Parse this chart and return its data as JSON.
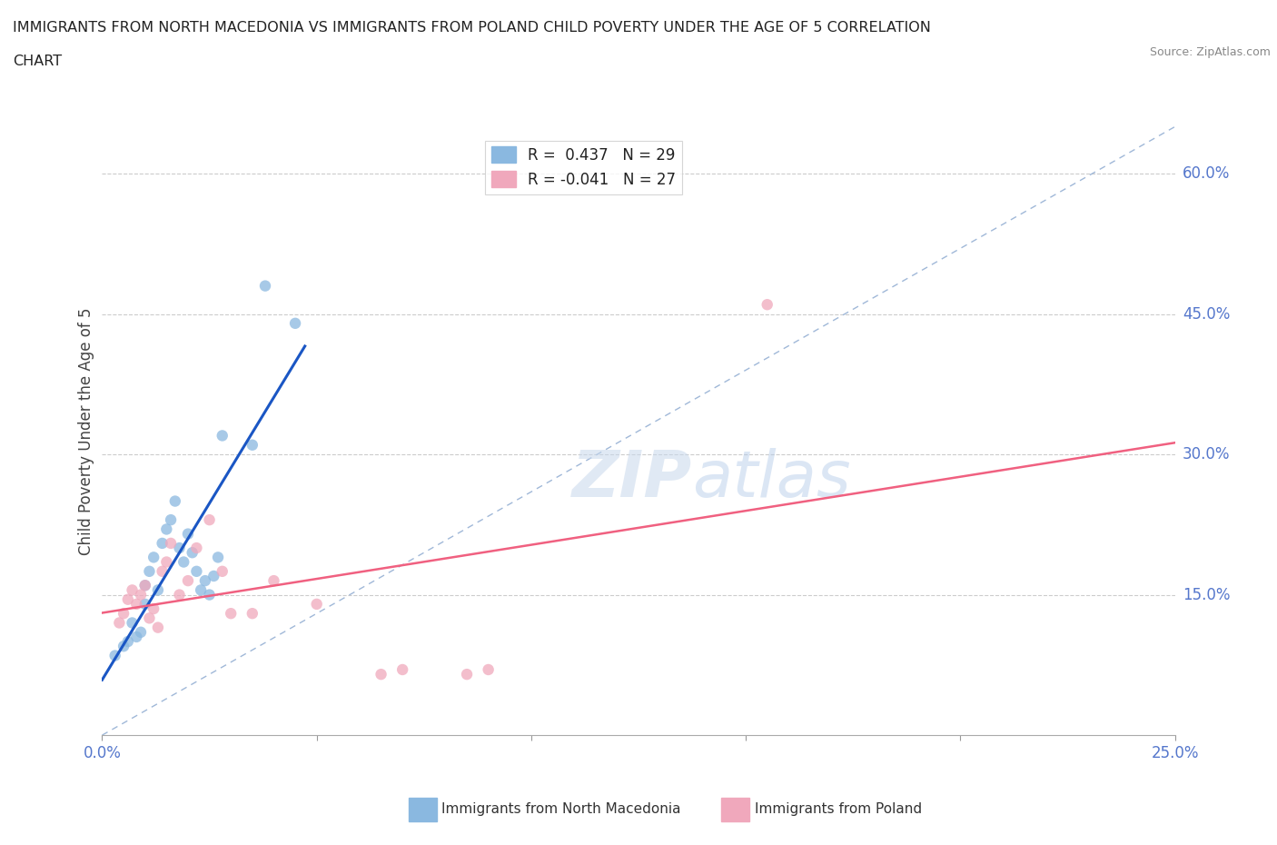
{
  "title_line1": "IMMIGRANTS FROM NORTH MACEDONIA VS IMMIGRANTS FROM POLAND CHILD POVERTY UNDER THE AGE OF 5 CORRELATION",
  "title_line2": "CHART",
  "source": "Source: ZipAtlas.com",
  "ylabel": "Child Poverty Under the Age of 5",
  "xlim": [
    0.0,
    0.25
  ],
  "ylim": [
    0.0,
    0.65
  ],
  "ytick_labels": [
    "15.0%",
    "30.0%",
    "45.0%",
    "60.0%"
  ],
  "ytick_values": [
    0.15,
    0.3,
    0.45,
    0.6
  ],
  "watermark_zip": "ZIP",
  "watermark_atlas": "atlas",
  "legend_r1": "R =  0.437   N = 29",
  "legend_r2": "R = -0.041   N = 27",
  "color_macedonia": "#8ab8e0",
  "color_poland": "#f0a8bc",
  "color_line_macedonia": "#1a56c4",
  "color_line_poland": "#f06080",
  "color_dashed": "#a0b8d8",
  "bottom_legend_mac": "Immigrants from North Macedonia",
  "bottom_legend_pol": "Immigrants from Poland",
  "macedonia_x": [
    0.003,
    0.005,
    0.006,
    0.007,
    0.008,
    0.009,
    0.01,
    0.01,
    0.011,
    0.012,
    0.013,
    0.014,
    0.015,
    0.016,
    0.017,
    0.018,
    0.019,
    0.02,
    0.021,
    0.022,
    0.023,
    0.024,
    0.025,
    0.026,
    0.027,
    0.028,
    0.035,
    0.038,
    0.045
  ],
  "macedonia_y": [
    0.085,
    0.095,
    0.1,
    0.12,
    0.105,
    0.11,
    0.14,
    0.16,
    0.175,
    0.19,
    0.155,
    0.205,
    0.22,
    0.23,
    0.25,
    0.2,
    0.185,
    0.215,
    0.195,
    0.175,
    0.155,
    0.165,
    0.15,
    0.17,
    0.19,
    0.32,
    0.31,
    0.48,
    0.44
  ],
  "poland_x": [
    0.004,
    0.005,
    0.006,
    0.007,
    0.008,
    0.009,
    0.01,
    0.011,
    0.012,
    0.013,
    0.014,
    0.015,
    0.016,
    0.018,
    0.02,
    0.022,
    0.025,
    0.028,
    0.03,
    0.035,
    0.04,
    0.05,
    0.065,
    0.07,
    0.085,
    0.09,
    0.155
  ],
  "poland_y": [
    0.12,
    0.13,
    0.145,
    0.155,
    0.14,
    0.15,
    0.16,
    0.125,
    0.135,
    0.115,
    0.175,
    0.185,
    0.205,
    0.15,
    0.165,
    0.2,
    0.23,
    0.175,
    0.13,
    0.13,
    0.165,
    0.14,
    0.065,
    0.07,
    0.065,
    0.07,
    0.46
  ]
}
